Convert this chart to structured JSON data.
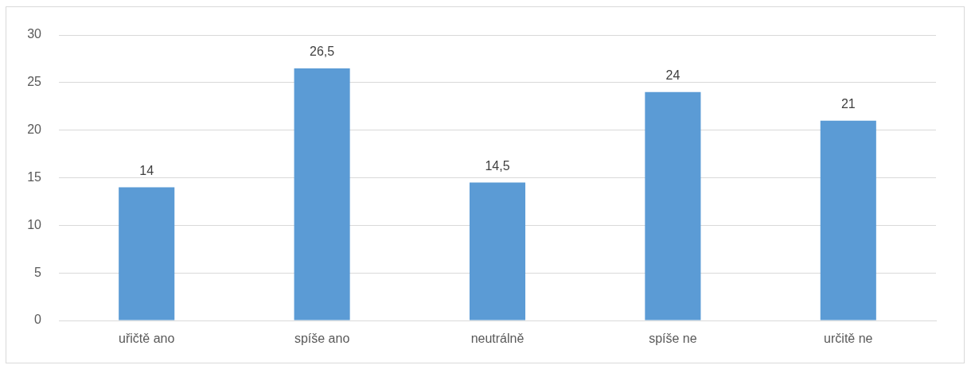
{
  "chart_data": {
    "type": "bar",
    "categories": [
      "uřičtě ano",
      "spíše ano",
      "neutrálně",
      "spíše ne",
      "určitě ne"
    ],
    "values": [
      14,
      26.5,
      14.5,
      24,
      21
    ],
    "value_labels": [
      "14",
      "26,5",
      "14,5",
      "24",
      "21"
    ],
    "color": "#5b9bd5",
    "ylim": [
      0,
      30
    ],
    "yticks": [
      0,
      5,
      10,
      15,
      20,
      25,
      30
    ],
    "grid": "y"
  }
}
